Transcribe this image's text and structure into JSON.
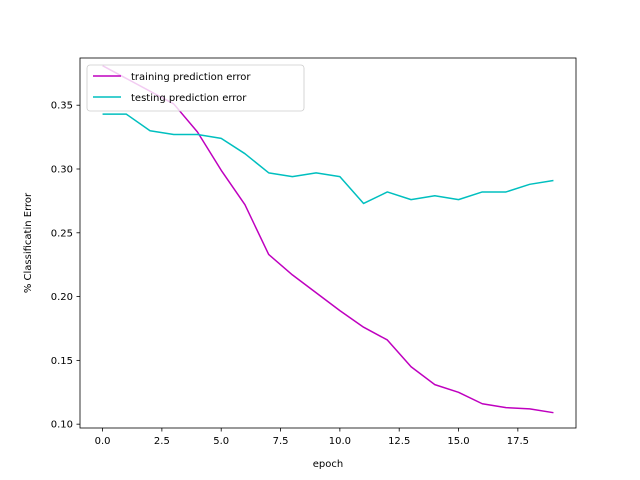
{
  "chart_data": {
    "type": "line",
    "title": "",
    "xlabel": "epoch",
    "ylabel": "% Classificatin Error",
    "xlim": [
      -0.95,
      19.95
    ],
    "ylim": [
      0.097,
      0.387
    ],
    "xticks": [
      0.0,
      2.5,
      5.0,
      7.5,
      10.0,
      12.5,
      15.0,
      17.5
    ],
    "xtick_labels": [
      "0.0",
      "2.5",
      "5.0",
      "7.5",
      "10.0",
      "12.5",
      "15.0",
      "17.5"
    ],
    "yticks": [
      0.1,
      0.15,
      0.2,
      0.25,
      0.3,
      0.35
    ],
    "ytick_labels": [
      "0.10",
      "0.15",
      "0.20",
      "0.25",
      "0.30",
      "0.35"
    ],
    "grid": false,
    "legend_position": "top-left",
    "x": [
      0,
      1,
      2,
      3,
      4,
      5,
      6,
      7,
      8,
      9,
      10,
      11,
      12,
      13,
      14,
      15,
      16,
      17,
      18,
      19
    ],
    "series": [
      {
        "name": "training prediction error",
        "color": "#bf00bf",
        "values": [
          0.381,
          0.371,
          0.361,
          0.351,
          0.329,
          0.299,
          0.272,
          0.233,
          0.217,
          0.203,
          0.189,
          0.176,
          0.166,
          0.145,
          0.131,
          0.125,
          0.116,
          0.113,
          0.112,
          0.109
        ]
      },
      {
        "name": "testing prediction error",
        "color": "#00bfbf",
        "values": [
          0.343,
          0.343,
          0.33,
          0.327,
          0.327,
          0.324,
          0.312,
          0.297,
          0.294,
          0.297,
          0.294,
          0.273,
          0.282,
          0.276,
          0.279,
          0.276,
          0.282,
          0.282,
          0.288,
          0.291
        ]
      }
    ]
  }
}
